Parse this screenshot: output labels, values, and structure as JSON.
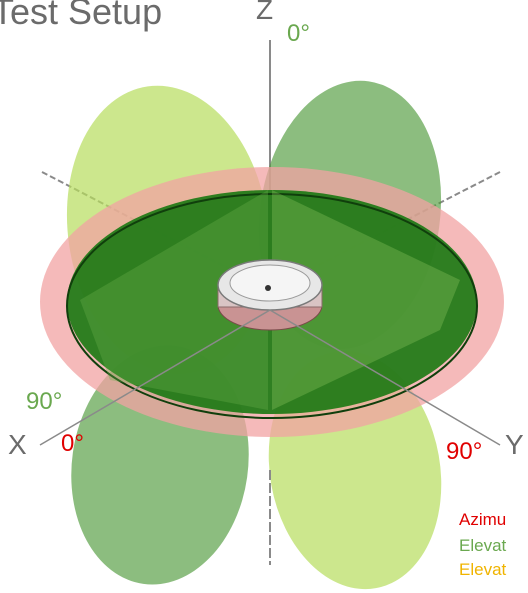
{
  "title": "Test Setup",
  "axes": {
    "z": "Z",
    "x": "X",
    "y": "Y"
  },
  "angle_labels": {
    "z_top": "0°",
    "x_elevation": "90°",
    "x_azimuth": "0°",
    "y_azimuth": "90°"
  },
  "legend": [
    {
      "text": "Azimu",
      "color": "#e00000"
    },
    {
      "text": "Elevat",
      "color": "#6aa84f"
    },
    {
      "text": "Elevat",
      "color": "#f0b400"
    }
  ],
  "colors": {
    "azimuth_plane": "#f2a3a3",
    "elevation_plane_1": "#3f8f33",
    "elevation_plane_2": "#b7dd5c",
    "horizontal_disc": "#1d7a15",
    "axis_line": "#888888"
  }
}
